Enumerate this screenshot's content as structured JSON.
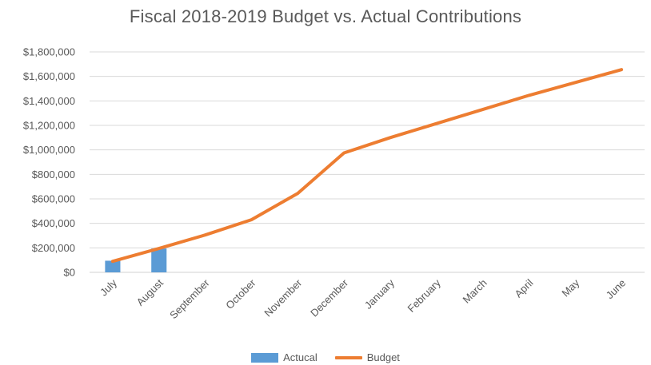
{
  "chart_data": {
    "type": "bar",
    "title": "Fiscal 2018-2019 Budget vs. Actual Contributions",
    "categories": [
      "July",
      "August",
      "September",
      "October",
      "November",
      "December",
      "January",
      "February",
      "March",
      "April",
      "May",
      "June"
    ],
    "ylim": [
      0,
      1800000
    ],
    "yticks": [
      0,
      200000,
      400000,
      600000,
      800000,
      1000000,
      1200000,
      1400000,
      1600000,
      1800000
    ],
    "ytick_labels": [
      "$0",
      "$200,000",
      "$400,000",
      "$600,000",
      "$800,000",
      "$1,000,000",
      "$1,200,000",
      "$1,400,000",
      "$1,600,000",
      "$1,800,000"
    ],
    "grid": true,
    "legend_position": "bottom",
    "series": [
      {
        "name": "Actucal",
        "type": "bar",
        "color": "#5B9BD5",
        "values": [
          95000,
          195000,
          null,
          null,
          null,
          null,
          null,
          null,
          null,
          null,
          null,
          null
        ]
      },
      {
        "name": "Budget",
        "type": "line",
        "color": "#ED7D31",
        "values": [
          90000,
          195000,
          305000,
          430000,
          645000,
          975000,
          1100000,
          1215000,
          1330000,
          1445000,
          1550000,
          1655000
        ]
      }
    ]
  }
}
